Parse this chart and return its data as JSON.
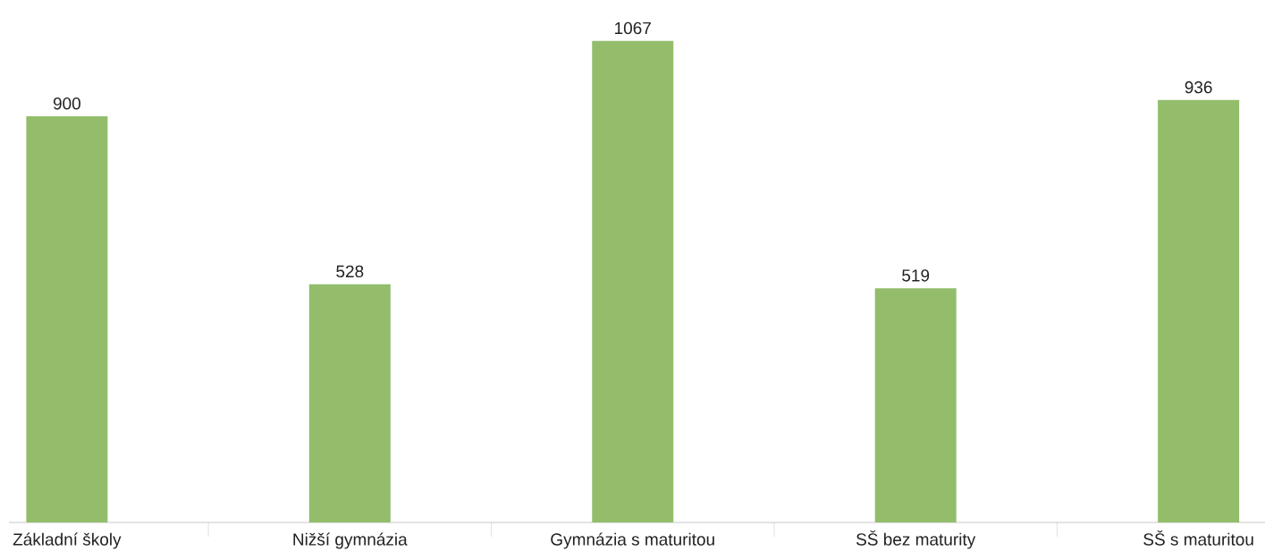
{
  "chart_data": {
    "type": "bar",
    "categories": [
      "Základní školy",
      "Nižší gymnázia",
      "Gymnázia s maturitou",
      "SŠ bez maturity",
      "SŠ s maturitou"
    ],
    "values": [
      900,
      528,
      1067,
      519,
      936
    ],
    "color": "#93bd6b",
    "data_labels": true
  }
}
